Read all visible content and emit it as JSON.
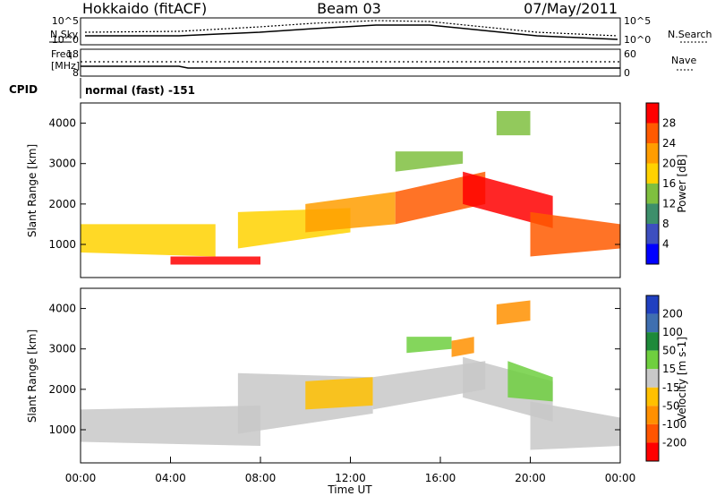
{
  "header": {
    "title_left": "Hokkaido (fitACF)",
    "title_center": "Beam 03",
    "title_right": "07/May/2011"
  },
  "strip_panels": {
    "nsky_label": "N.Sky",
    "nsearch_label": "N.Search",
    "freq_label_line1": "Freq.",
    "freq_label_line2": "[MHz]",
    "nave_label": "Nave",
    "cpid_label": "CPID",
    "cpid_text": "normal (fast) -151",
    "noise_ticks_left": [
      "10^5",
      "10^0"
    ],
    "noise_ticks_right": [
      "10^5",
      "10^0"
    ],
    "freq_ticks": [
      "18",
      "8"
    ],
    "nave_ticks": [
      "60",
      "0"
    ]
  },
  "power_colorbar": {
    "label": "Power [dB]",
    "ticks": [
      "4",
      "8",
      "12",
      "16",
      "20",
      "24",
      "28"
    ],
    "colors": [
      "#0000ff",
      "#3d4fbf",
      "#3d8f6b",
      "#7fbf3f",
      "#ffd200",
      "#ff9d00",
      "#ff5a00",
      "#ff0000"
    ]
  },
  "velocity_colorbar": {
    "label": "Velocity [m s-1]",
    "ticks": [
      "200",
      "100",
      "50",
      "15",
      "-15",
      "-50",
      "-100",
      "-200"
    ],
    "colors": [
      "#2040c0",
      "#3f6fb0",
      "#1e8a3a",
      "#6fcf3f",
      "#c8c8c8",
      "#ffc000",
      "#ff9000",
      "#ff5500",
      "#ff0000"
    ]
  },
  "chart_data": [
    {
      "type": "heatmap",
      "name": "power",
      "ylabel": "Slant Range [km]",
      "xlabel": "",
      "yticks": [
        "1000",
        "2000",
        "3000",
        "4000"
      ],
      "ylim": [
        180,
        4500
      ],
      "xlim": [
        0,
        24
      ],
      "bands": [
        {
          "t": [
            0,
            6
          ],
          "lo": [
            800,
            700
          ],
          "hi": [
            1500,
            1500
          ],
          "level": 4
        },
        {
          "t": [
            4,
            8
          ],
          "lo": [
            500,
            500
          ],
          "hi": [
            700,
            700
          ],
          "level": 7
        },
        {
          "t": [
            7,
            12
          ],
          "lo": [
            900,
            1300
          ],
          "hi": [
            1800,
            1900
          ],
          "level": 4
        },
        {
          "t": [
            10,
            14
          ],
          "lo": [
            1300,
            1500
          ],
          "hi": [
            2000,
            2300
          ],
          "level": 5
        },
        {
          "t": [
            14,
            18
          ],
          "lo": [
            1500,
            2000
          ],
          "hi": [
            2300,
            2800
          ],
          "level": 6
        },
        {
          "t": [
            17,
            21
          ],
          "lo": [
            2000,
            1400
          ],
          "hi": [
            2800,
            2200
          ],
          "level": 7
        },
        {
          "t": [
            20,
            24
          ],
          "lo": [
            700,
            900
          ],
          "hi": [
            1800,
            1500
          ],
          "level": 6
        },
        {
          "t": [
            14,
            17
          ],
          "lo": [
            2800,
            3000
          ],
          "hi": [
            3300,
            3300
          ],
          "level": 3
        },
        {
          "t": [
            18.5,
            20
          ],
          "lo": [
            3700,
            3700
          ],
          "hi": [
            4300,
            4300
          ],
          "level": 3
        }
      ]
    },
    {
      "type": "heatmap",
      "name": "velocity",
      "ylabel": "Slant Range [km]",
      "xlabel": "Time UT",
      "yticks": [
        "1000",
        "2000",
        "3000",
        "4000"
      ],
      "xticks": [
        "00:00",
        "04:00",
        "08:00",
        "12:00",
        "16:00",
        "20:00",
        "00:00"
      ],
      "ylim": [
        180,
        4500
      ],
      "xlim": [
        0,
        24
      ],
      "bands": [
        {
          "t": [
            0,
            8
          ],
          "lo": [
            700,
            600
          ],
          "hi": [
            1500,
            1600
          ],
          "level": 4
        },
        {
          "t": [
            7,
            13
          ],
          "lo": [
            900,
            1400
          ],
          "hi": [
            2400,
            2300
          ],
          "level": 4
        },
        {
          "t": [
            10,
            13
          ],
          "lo": [
            1500,
            1600
          ],
          "hi": [
            2200,
            2300
          ],
          "level": 5
        },
        {
          "t": [
            13,
            18
          ],
          "lo": [
            1500,
            2000
          ],
          "hi": [
            2300,
            2700
          ],
          "level": 4
        },
        {
          "t": [
            14.5,
            16.5
          ],
          "lo": [
            2900,
            3000
          ],
          "hi": [
            3300,
            3300
          ],
          "level": 3
        },
        {
          "t": [
            16.5,
            17.5
          ],
          "lo": [
            2800,
            2900
          ],
          "hi": [
            3200,
            3300
          ],
          "level": 6
        },
        {
          "t": [
            17,
            21
          ],
          "lo": [
            1800,
            1200
          ],
          "hi": [
            2800,
            2200
          ],
          "level": 4
        },
        {
          "t": [
            19,
            21
          ],
          "lo": [
            1800,
            1700
          ],
          "hi": [
            2700,
            2300
          ],
          "level": 3
        },
        {
          "t": [
            20,
            24
          ],
          "lo": [
            500,
            600
          ],
          "hi": [
            1700,
            1300
          ],
          "level": 4
        },
        {
          "t": [
            18.5,
            20
          ],
          "lo": [
            3600,
            3700
          ],
          "hi": [
            4100,
            4200
          ],
          "level": 6
        }
      ]
    }
  ]
}
